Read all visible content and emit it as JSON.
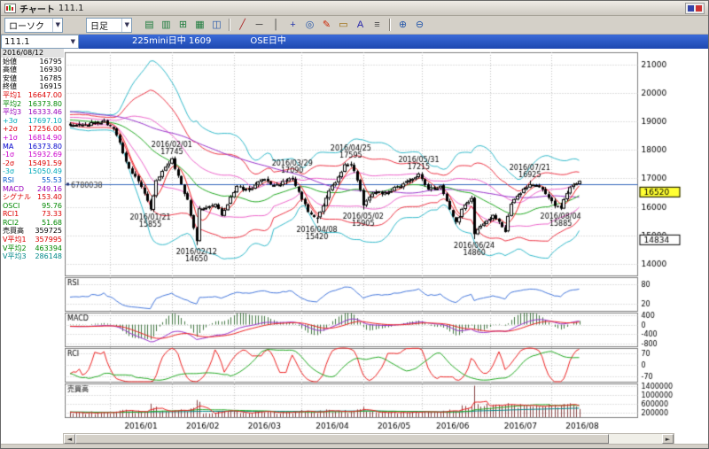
{
  "window": {
    "title": "チャート",
    "title_value": "111.1"
  },
  "toolbar": {
    "chart_type": {
      "label": "ローソク",
      "arrow": "▼"
    },
    "period": {
      "label": "日足",
      "arrow": "▼"
    },
    "icon_groups": [
      [
        {
          "name": "layout-single-icon",
          "glyph": "▤",
          "color": "#1a7a3a"
        },
        {
          "name": "layout-two-pane-icon",
          "glyph": "▥",
          "color": "#1a7a3a"
        },
        {
          "name": "layout-four-pane-icon",
          "glyph": "⊞",
          "color": "#1a7a3a"
        },
        {
          "name": "layout-six-pane-icon",
          "glyph": "▦",
          "color": "#1a7a3a"
        },
        {
          "name": "compare-chart-icon",
          "glyph": "◫",
          "color": "#2255aa"
        }
      ],
      [
        {
          "name": "trendline-tool-icon",
          "glyph": "╱",
          "color": "#aa2222"
        },
        {
          "name": "horizontal-line-tool-icon",
          "glyph": "─",
          "color": "#333333"
        },
        {
          "name": "vertical-line-tool-icon",
          "glyph": "│",
          "color": "#333333"
        },
        {
          "name": "crosshair-tool-icon",
          "glyph": "+",
          "color": "#2233aa"
        },
        {
          "name": "magnifier-tool-icon",
          "glyph": "◎",
          "color": "#2255aa"
        },
        {
          "name": "pencil-tool-icon",
          "glyph": "✎",
          "color": "#cc2200"
        },
        {
          "name": "eraser-tool-icon",
          "glyph": "▭",
          "color": "#996600"
        },
        {
          "name": "text-tool-icon",
          "glyph": "A",
          "color": "#2222aa"
        },
        {
          "name": "indicator-settings-icon",
          "glyph": "≡",
          "color": "#444444"
        }
      ],
      [
        {
          "name": "zoom-in-icon",
          "glyph": "⊕",
          "color": "#2255aa"
        },
        {
          "name": "zoom-out-icon",
          "glyph": "⊖",
          "color": "#2255aa"
        }
      ]
    ]
  },
  "infobar": {
    "symbol": "111.1",
    "arrow": "▼",
    "instrument": "225mini日中 1609",
    "session": "OSE日中"
  },
  "info_panel": {
    "date": "2016/08/12",
    "rows": [
      {
        "label": "始値",
        "value": "16795",
        "color": "#000000"
      },
      {
        "label": "高値",
        "value": "16930",
        "color": "#000000"
      },
      {
        "label": "安値",
        "value": "16785",
        "color": "#000000"
      },
      {
        "label": "終値",
        "value": "16915",
        "color": "#000000"
      },
      {
        "label": "平均1",
        "value": "16647.00",
        "color": "#dd0000"
      },
      {
        "label": "平均2",
        "value": "16373.80",
        "color": "#008800"
      },
      {
        "label": "平均3",
        "value": "16333.46",
        "color": "#9900bb"
      },
      {
        "label": "+3σ",
        "value": "17697.10",
        "color": "#00aabb"
      },
      {
        "label": "+2σ",
        "value": "17256.00",
        "color": "#dd0000"
      },
      {
        "label": "+1σ",
        "value": "16814.90",
        "color": "#cc00cc"
      },
      {
        "label": "MA",
        "value": "16373.80",
        "color": "#0000cc"
      },
      {
        "label": "-1σ",
        "value": "15932.69",
        "color": "#cc00cc"
      },
      {
        "label": "-2σ",
        "value": "15491.59",
        "color": "#dd0000"
      },
      {
        "label": "-3σ",
        "value": "15050.49",
        "color": "#00aabb"
      },
      {
        "label": "RSI",
        "value": "55.53",
        "color": "#0055cc"
      },
      {
        "label": "MACD",
        "value": "249.16",
        "color": "#9900bb"
      },
      {
        "label": "シグナル",
        "value": "153.40",
        "color": "#dd0000"
      },
      {
        "label": "OSCI",
        "value": "95.76",
        "color": "#008800"
      },
      {
        "label": "RCI1",
        "value": "73.33",
        "color": "#dd0000"
      },
      {
        "label": "RCI2",
        "value": "51.68",
        "color": "#008800"
      },
      {
        "label": "売買高",
        "value": "359725",
        "color": "#000000"
      },
      {
        "label": "V平均1",
        "value": "357995",
        "color": "#dd0000"
      },
      {
        "label": "V平均2",
        "value": "463394",
        "color": "#008800"
      },
      {
        "label": "V平均3",
        "value": "286148",
        "color": "#008888"
      }
    ]
  },
  "scrollbar": {
    "left_arrow": "◄",
    "right_arrow": "►"
  },
  "chart_data": {
    "type": "candlestick",
    "instrument": "225mini日中 1609",
    "period": "日足",
    "y_axis": {
      "ticks": [
        21000,
        20000,
        19000,
        18000,
        17000,
        16000,
        15000,
        14000
      ],
      "max": 21450,
      "min": 13580
    },
    "x_labels": [
      "2016/01",
      "2016/02",
      "2016/03",
      "2016/04",
      "2016/05",
      "2016/06",
      "2016/07",
      "2016/08"
    ],
    "price_markers": [
      {
        "value": 16520,
        "bg": "#ffff33"
      },
      {
        "value": 14834,
        "bg": "#ffffff"
      }
    ],
    "left_marker": {
      "value": "6780038",
      "price": 16790
    },
    "annotations": [
      {
        "date": "2016/01/21",
        "value": 15855,
        "position": "below"
      },
      {
        "date": "2016/02/01",
        "value": 17745,
        "position": "above"
      },
      {
        "date": "2016/02/12",
        "value": 14650,
        "position": "below"
      },
      {
        "date": "2016/03/29",
        "value": 17090,
        "position": "above"
      },
      {
        "date": "2016/04/08",
        "value": 15420,
        "position": "below"
      },
      {
        "date": "2016/04/25",
        "value": 17595,
        "position": "above"
      },
      {
        "date": "2016/05/02",
        "value": 15905,
        "position": "below"
      },
      {
        "date": "2016/05/31",
        "value": 17215,
        "position": "above"
      },
      {
        "date": "2016/06/24",
        "value": 14860,
        "position": "below"
      },
      {
        "date": "2016/07/21",
        "value": 16925,
        "position": "above"
      },
      {
        "date": "2016/08/04",
        "value": 15885,
        "position": "below"
      }
    ],
    "last_candle": {
      "open": 16795,
      "high": 16930,
      "low": 16785,
      "close": 16915
    },
    "last_volume": 359725,
    "waypoints": [
      [
        "2015-12-14",
        18900
      ],
      [
        "2015-12-21",
        18900
      ],
      [
        "2015-12-30",
        19000
      ],
      [
        "2016-01-04",
        18700
      ],
      [
        "2016-01-06",
        18250
      ],
      [
        "2016-01-12",
        17300
      ],
      [
        "2016-01-14",
        17050
      ],
      [
        "2016-01-18",
        16750
      ],
      [
        "2016-01-21",
        15960
      ],
      [
        "2016-01-25",
        16950
      ],
      [
        "2016-01-29",
        17500
      ],
      [
        "2016-02-01",
        17700
      ],
      [
        "2016-02-03",
        17050
      ],
      [
        "2016-02-08",
        16200
      ],
      [
        "2016-02-12",
        14800
      ],
      [
        "2016-02-15",
        15900
      ],
      [
        "2016-02-22",
        16100
      ],
      [
        "2016-02-24",
        15750
      ],
      [
        "2016-03-02",
        16700
      ],
      [
        "2016-03-08",
        16600
      ],
      [
        "2016-03-14",
        17000
      ],
      [
        "2016-03-18",
        16750
      ],
      [
        "2016-03-29",
        17000
      ],
      [
        "2016-04-01",
        16300
      ],
      [
        "2016-04-05",
        15850
      ],
      [
        "2016-04-08",
        15550
      ],
      [
        "2016-04-13",
        16350
      ],
      [
        "2016-04-21",
        17450
      ],
      [
        "2016-04-25",
        17500
      ],
      [
        "2016-04-28",
        16650
      ],
      [
        "2016-05-02",
        16000
      ],
      [
        "2016-05-10",
        16500
      ],
      [
        "2016-05-16",
        16500
      ],
      [
        "2016-05-23",
        16750
      ],
      [
        "2016-05-31",
        17150
      ],
      [
        "2016-06-03",
        16650
      ],
      [
        "2016-06-09",
        16700
      ],
      [
        "2016-06-16",
        15450
      ],
      [
        "2016-06-21",
        16100
      ],
      [
        "2016-06-23",
        16300
      ],
      [
        "2016-06-24",
        15000
      ],
      [
        "2016-06-28",
        15350
      ],
      [
        "2016-07-04",
        15700
      ],
      [
        "2016-07-08",
        15150
      ],
      [
        "2016-07-12",
        16100
      ],
      [
        "2016-07-21",
        16850
      ],
      [
        "2016-07-27",
        16600
      ],
      [
        "2016-08-02",
        16050
      ],
      [
        "2016-08-04",
        15980
      ],
      [
        "2016-08-09",
        16700
      ],
      [
        "2016-08-12",
        16870
      ]
    ],
    "panels": [
      {
        "name": "RSI",
        "ticks": [
          80,
          20
        ],
        "range": [
          0,
          100
        ]
      },
      {
        "name": "MACD",
        "ticks": [
          400,
          0,
          -400,
          -800
        ],
        "range": [
          -900,
          500
        ]
      },
      {
        "name": "RCI",
        "ticks": [
          70,
          0,
          -70
        ],
        "range": [
          -100,
          100
        ]
      },
      {
        "name": "売買高",
        "ticks": [
          1400000,
          1000000,
          600000,
          200000
        ],
        "range": [
          0,
          1500000
        ]
      }
    ],
    "colors": {
      "ma1": "#ee2222",
      "ma2": "#22aa22",
      "ma3": "#9933cc",
      "boll1": "#ee66cc",
      "boll2": "#ee3344",
      "boll3": "#33bbcc",
      "rsi": "#4477dd",
      "macd": "#9933cc",
      "signal": "#ee2222",
      "osci": "#447744",
      "rci1": "#ee2222",
      "rci2": "#22aa22",
      "volume": "#884444",
      "vma1": "#ee2222",
      "vma2": "#22aa22",
      "vma3": "#008888",
      "grid": "#c0c0c0",
      "hline": "#3366bb"
    }
  }
}
